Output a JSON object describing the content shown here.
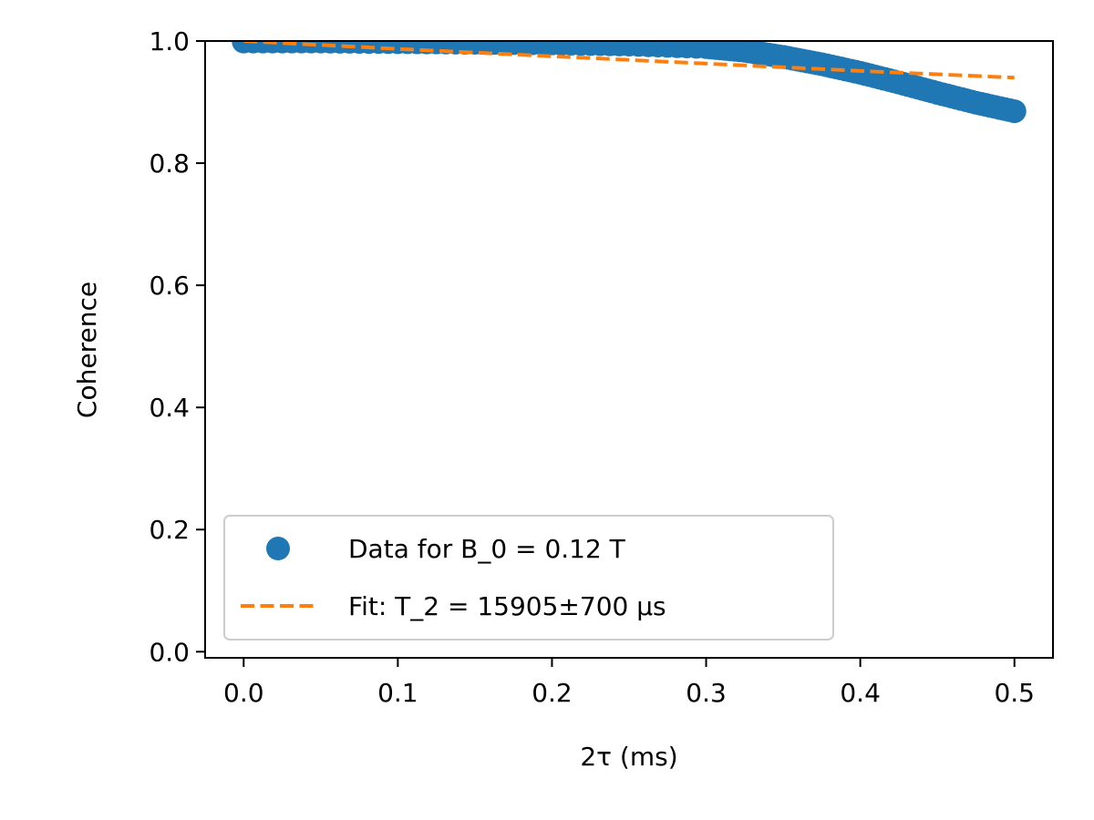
{
  "chart_data": {
    "type": "scatter",
    "xlabel": "2τ (ms)",
    "ylabel": "Coherence",
    "xlim": [
      -0.025,
      0.525
    ],
    "ylim": [
      -0.01,
      1.0
    ],
    "x_ticks": [
      0.0,
      0.1,
      0.2,
      0.3,
      0.4,
      0.5
    ],
    "x_tick_labels": [
      "0.0",
      "0.1",
      "0.2",
      "0.3",
      "0.4",
      "0.5"
    ],
    "y_ticks": [
      0.0,
      0.2,
      0.4,
      0.6,
      0.8,
      1.0
    ],
    "y_tick_labels": [
      "0.0",
      "0.2",
      "0.4",
      "0.6",
      "0.8",
      "1.0"
    ],
    "grid": false,
    "legend_position": "lower-left",
    "series": [
      {
        "name": "Data for B_0 = 0.12 T",
        "kind": "scatter",
        "color": "#1f77b4",
        "x": [
          0.0,
          0.05,
          0.1,
          0.15,
          0.2,
          0.25,
          0.3,
          0.325,
          0.35,
          0.375,
          0.4,
          0.425,
          0.45,
          0.475,
          0.5
        ],
        "y": [
          0.999,
          0.999,
          0.998,
          0.997,
          0.996,
          0.994,
          0.99,
          0.984,
          0.974,
          0.962,
          0.948,
          0.932,
          0.915,
          0.899,
          0.885
        ]
      },
      {
        "name": "Fit: T_2 = 15905±700 µs",
        "kind": "line",
        "style": "dashed",
        "color": "#ff7f0e",
        "x": [
          0.0,
          0.1,
          0.2,
          0.3,
          0.4,
          0.5
        ],
        "y": [
          1.0,
          0.987,
          0.975,
          0.963,
          0.951,
          0.94
        ]
      }
    ]
  }
}
